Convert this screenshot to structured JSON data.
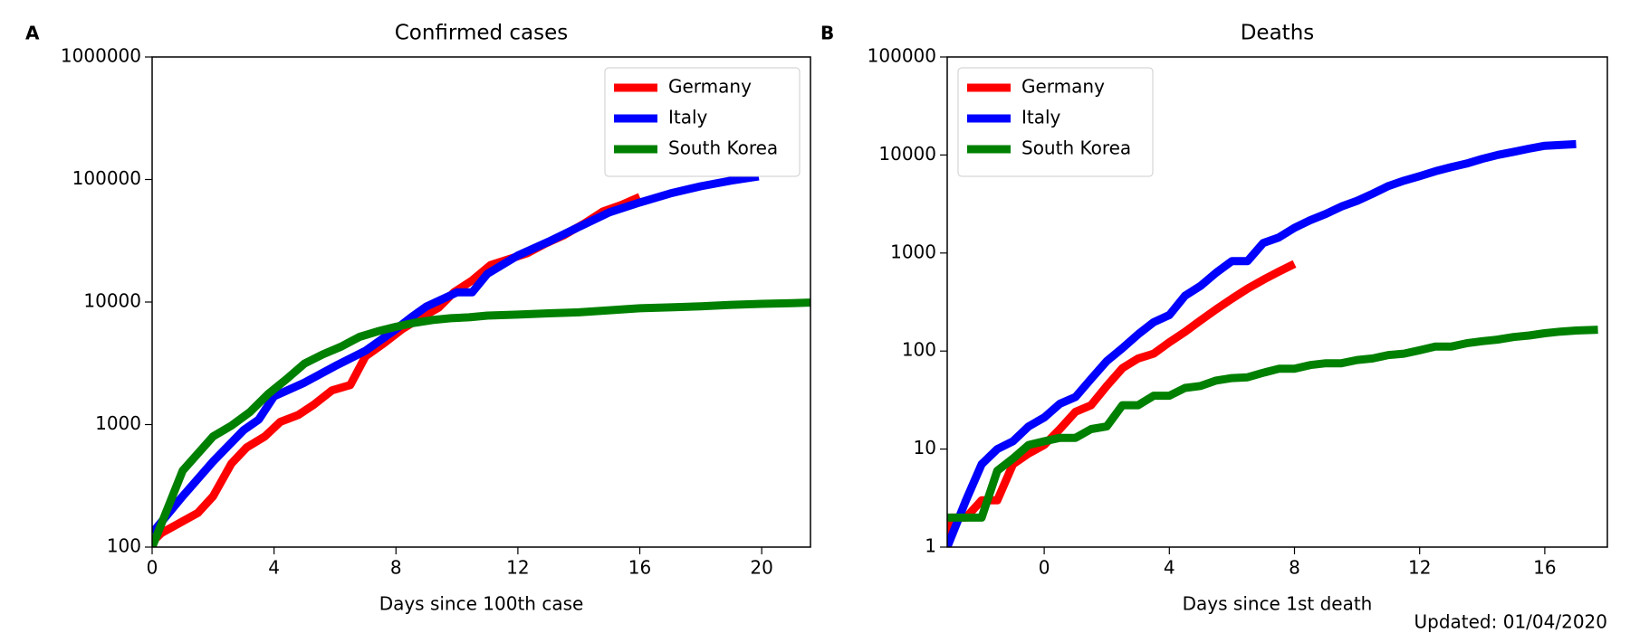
{
  "chart_data": [
    {
      "type": "line",
      "panel_label": "A",
      "title": "Confirmed cases",
      "x_label": "Days since 100th case",
      "log_y": true,
      "legend": "upper right",
      "xlim": [
        0,
        21.6
      ],
      "xticks": [
        0,
        4,
        8,
        12,
        16,
        20
      ],
      "ylim": [
        100,
        1000000
      ],
      "yticks": [
        100,
        1000,
        10000,
        100000,
        1000000
      ],
      "series": [
        {
          "name": "Germany",
          "color": "#ff0000",
          "x": [
            0,
            0.3,
            1.5,
            2,
            2.6,
            3.1,
            3.7,
            4.2,
            4.8,
            5.3,
            5.9,
            6.5,
            7,
            7.6,
            8.2,
            8.8,
            9.4,
            9.9,
            10.5,
            11.1,
            12.3,
            12.9,
            13.5,
            14.2,
            14.8,
            15.4,
            16
          ],
          "values": [
            110,
            130,
            190,
            260,
            480,
            650,
            800,
            1050,
            1200,
            1450,
            1900,
            2100,
            3600,
            4600,
            6000,
            7400,
            9000,
            12000,
            15000,
            20000,
            25000,
            30000,
            35000,
            44000,
            55000,
            62000,
            72000
          ]
        },
        {
          "name": "Italy",
          "color": "#0000ff",
          "x": [
            0,
            1,
            2,
            3,
            3.5,
            4,
            5,
            6,
            7,
            8,
            8.5,
            9,
            10,
            10.5,
            11,
            12,
            13,
            14,
            15,
            16,
            17,
            18,
            19,
            19.9
          ],
          "values": [
            130,
            260,
            500,
            900,
            1100,
            1700,
            2200,
            3000,
            4000,
            6000,
            7500,
            9200,
            12000,
            12000,
            17000,
            24000,
            31000,
            41000,
            54000,
            65000,
            77000,
            88000,
            98000,
            106000
          ]
        },
        {
          "name": "South Korea",
          "color": "#008000",
          "x": [
            0,
            1,
            2,
            2.6,
            3.2,
            3.8,
            4.4,
            5,
            5.6,
            6.2,
            6.8,
            7.4,
            8,
            8.6,
            9.2,
            9.8,
            10.4,
            11,
            12,
            13,
            14,
            15,
            16,
            17,
            18,
            19,
            20,
            21,
            21.6
          ],
          "values": [
            100,
            420,
            800,
            980,
            1260,
            1770,
            2340,
            3150,
            3740,
            4330,
            5190,
            5770,
            6280,
            6770,
            7130,
            7380,
            7510,
            7750,
            7900,
            8090,
            8240,
            8560,
            8900,
            9040,
            9240,
            9480,
            9660,
            9790,
            9900
          ]
        }
      ]
    },
    {
      "type": "line",
      "panel_label": "B",
      "title": "Deaths",
      "x_label": "Days since 1st death",
      "log_y": true,
      "legend": "upper left",
      "xlim": [
        -3.1,
        18
      ],
      "xticks": [
        0,
        4,
        8,
        12,
        16
      ],
      "ylim": [
        1,
        100000
      ],
      "yticks": [
        1,
        10,
        100,
        1000,
        10000,
        100000
      ],
      "series": [
        {
          "name": "Germany",
          "color": "#ff0000",
          "x": [
            -3.1,
            -3,
            -2.5,
            -2,
            -1.5,
            -1,
            -0.5,
            0,
            0.5,
            1,
            1.5,
            2,
            2.5,
            3,
            3.5,
            4,
            4.5,
            5,
            5.5,
            6,
            6.5,
            7,
            7.5,
            8
          ],
          "values": [
            1,
            2,
            2,
            3,
            3,
            7,
            9,
            11,
            16,
            24,
            28,
            44,
            67,
            84,
            94,
            123,
            157,
            206,
            267,
            342,
            433,
            533,
            645,
            775
          ]
        },
        {
          "name": "Italy",
          "color": "#0000ff",
          "x": [
            -3.1,
            -2.5,
            -2,
            -1.5,
            -1,
            -0.5,
            0,
            0.5,
            1,
            1.5,
            2,
            2.5,
            3,
            3.5,
            4,
            4.5,
            5,
            5.5,
            6,
            6.5,
            7,
            7.5,
            8,
            8.5,
            9,
            9.5,
            10,
            10.5,
            11,
            11.5,
            12,
            12.5,
            13,
            13.5,
            14,
            14.5,
            15,
            15.5,
            16,
            17
          ],
          "values": [
            1,
            3,
            7,
            10,
            12,
            17,
            21,
            29,
            34,
            52,
            79,
            107,
            148,
            197,
            233,
            366,
            463,
            631,
            827,
            827,
            1266,
            1441,
            1809,
            2158,
            2503,
            2978,
            3405,
            4032,
            4825,
            5476,
            6077,
            6820,
            7503,
            8165,
            9134,
            10023,
            10779,
            11591,
            12428,
            12900
          ]
        },
        {
          "name": "South Korea",
          "color": "#008000",
          "x": [
            -3.1,
            -2,
            -1.5,
            -1,
            -0.5,
            0,
            0.5,
            1,
            1.5,
            2,
            2.5,
            3,
            3.5,
            4,
            4.5,
            5,
            5.5,
            6,
            6.5,
            7,
            7.5,
            8,
            8.5,
            9,
            9.5,
            10,
            10.5,
            11,
            11.5,
            12,
            12.5,
            13,
            13.5,
            14,
            14.5,
            15,
            15.5,
            16,
            16.5,
            17,
            17.7
          ],
          "values": [
            2,
            2,
            6,
            8,
            11,
            12,
            13,
            13,
            16,
            17,
            28,
            28,
            35,
            35,
            42,
            44,
            50,
            53,
            54,
            60,
            66,
            66,
            72,
            75,
            75,
            81,
            84,
            91,
            94,
            102,
            111,
            111,
            120,
            126,
            131,
            139,
            144,
            152,
            158,
            162,
            165
          ]
        }
      ]
    }
  ],
  "footer": "Updated: 01/04/2020"
}
